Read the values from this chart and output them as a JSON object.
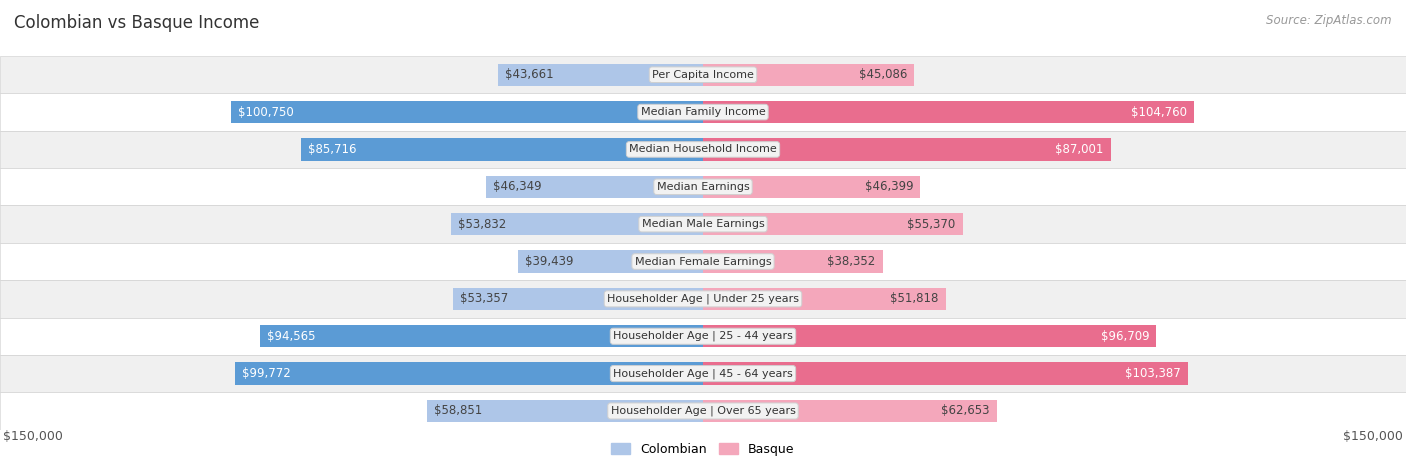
{
  "title": "Colombian vs Basque Income",
  "source": "Source: ZipAtlas.com",
  "categories": [
    "Per Capita Income",
    "Median Family Income",
    "Median Household Income",
    "Median Earnings",
    "Median Male Earnings",
    "Median Female Earnings",
    "Householder Age | Under 25 years",
    "Householder Age | 25 - 44 years",
    "Householder Age | 45 - 64 years",
    "Householder Age | Over 65 years"
  ],
  "colombian_values": [
    43661,
    100750,
    85716,
    46349,
    53832,
    39439,
    53357,
    94565,
    99772,
    58851
  ],
  "basque_values": [
    45086,
    104760,
    87001,
    46399,
    55370,
    38352,
    51818,
    96709,
    103387,
    62653
  ],
  "colombian_labels": [
    "$43,661",
    "$100,750",
    "$85,716",
    "$46,349",
    "$53,832",
    "$39,439",
    "$53,357",
    "$94,565",
    "$99,772",
    "$58,851"
  ],
  "basque_labels": [
    "$45,086",
    "$104,760",
    "$87,001",
    "$46,399",
    "$55,370",
    "$38,352",
    "$51,818",
    "$96,709",
    "$103,387",
    "$62,653"
  ],
  "colombian_color_light": "#aec6e8",
  "colombian_color_dark": "#5b9bd5",
  "basque_color_light": "#f4a7bb",
  "basque_color_dark": "#e96d8e",
  "label_box_bg": "#f2f2f2",
  "label_box_edge": "#d0d0d0",
  "background_color": "#ffffff",
  "row_bg_even": "#f0f0f0",
  "row_bg_odd": "#ffffff",
  "x_max": 150000,
  "x_tick_label": "$150,000",
  "legend_colombian": "Colombian",
  "legend_basque": "Basque",
  "title_fontsize": 12,
  "source_fontsize": 8.5,
  "bar_label_fontsize": 8.5,
  "cat_label_fontsize": 8,
  "tick_label_fontsize": 9,
  "bar_height": 0.6,
  "threshold_dark": 80000
}
